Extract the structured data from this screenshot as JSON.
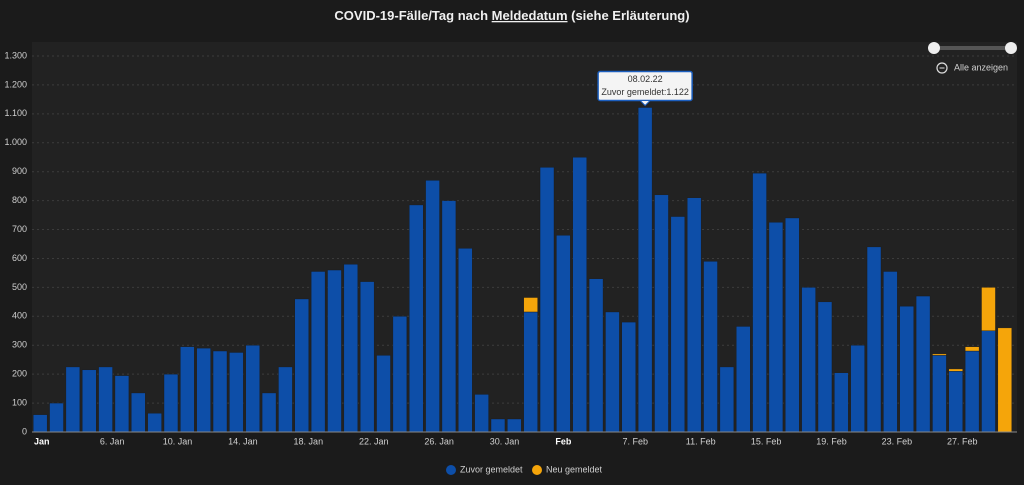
{
  "chart_data": {
    "type": "stacked_bar",
    "title": [
      "COVID-19-Fälle/Tag nach ",
      "Meldedatum",
      " (siehe Erläuterung)"
    ],
    "categories": [
      "Jan",
      null,
      null,
      null,
      "6. Jan",
      null,
      null,
      null,
      "10. Jan",
      null,
      null,
      null,
      "14. Jan",
      null,
      null,
      null,
      "18. Jan",
      null,
      null,
      null,
      "22. Jan",
      null,
      null,
      null,
      "26. Jan",
      null,
      null,
      null,
      "30. Jan",
      null,
      null,
      null,
      "Feb",
      null,
      null,
      null,
      "7. Feb",
      null,
      null,
      null,
      "11. Feb",
      null,
      null,
      null,
      "15. Feb",
      null,
      null,
      null,
      "19. Feb",
      null,
      null,
      null,
      "23. Feb",
      null,
      null,
      null,
      "27. Feb",
      null,
      null,
      null
    ],
    "series": [
      {
        "name": "Zuvor gemeldet",
        "color": "#0d4ea8",
        "values": [
          60,
          100,
          225,
          215,
          225,
          195,
          135,
          65,
          200,
          295,
          290,
          280,
          275,
          300,
          135,
          225,
          460,
          555,
          560,
          580,
          520,
          265,
          400,
          785,
          870,
          800,
          635,
          130,
          45,
          45,
          415,
          915,
          680,
          950,
          530,
          415,
          380,
          1122,
          820,
          745,
          810,
          590,
          225,
          365,
          895,
          725,
          740,
          500,
          450,
          205,
          300,
          640,
          555,
          435,
          470,
          265,
          210,
          280,
          350,
          0
        ]
      },
      {
        "name": "Neu gemeldet",
        "color": "#f5a50a",
        "values": [
          0,
          0,
          0,
          0,
          0,
          0,
          0,
          0,
          0,
          0,
          0,
          0,
          0,
          0,
          0,
          0,
          0,
          0,
          0,
          0,
          0,
          0,
          0,
          0,
          0,
          0,
          0,
          0,
          0,
          0,
          50,
          0,
          0,
          0,
          0,
          0,
          0,
          0,
          0,
          0,
          0,
          0,
          0,
          0,
          0,
          0,
          0,
          0,
          0,
          0,
          0,
          0,
          0,
          0,
          0,
          5,
          8,
          15,
          150,
          360
        ]
      }
    ],
    "ylim": [
      0,
      1300
    ],
    "yticks": [
      0,
      100,
      200,
      300,
      400,
      500,
      600,
      700,
      800,
      900,
      {
        "value": 1000,
        "label": "1.000"
      },
      {
        "value": 1100,
        "label": "1.100"
      },
      {
        "value": 1200,
        "label": "1.200"
      },
      {
        "value": 1300,
        "label": "1.300"
      }
    ],
    "grid": true,
    "tooltip": {
      "title": "08.02.22",
      "text": "Zuvor gemeldet:1.122",
      "index": 37
    },
    "zoom_button": "Alle anzeigen"
  }
}
